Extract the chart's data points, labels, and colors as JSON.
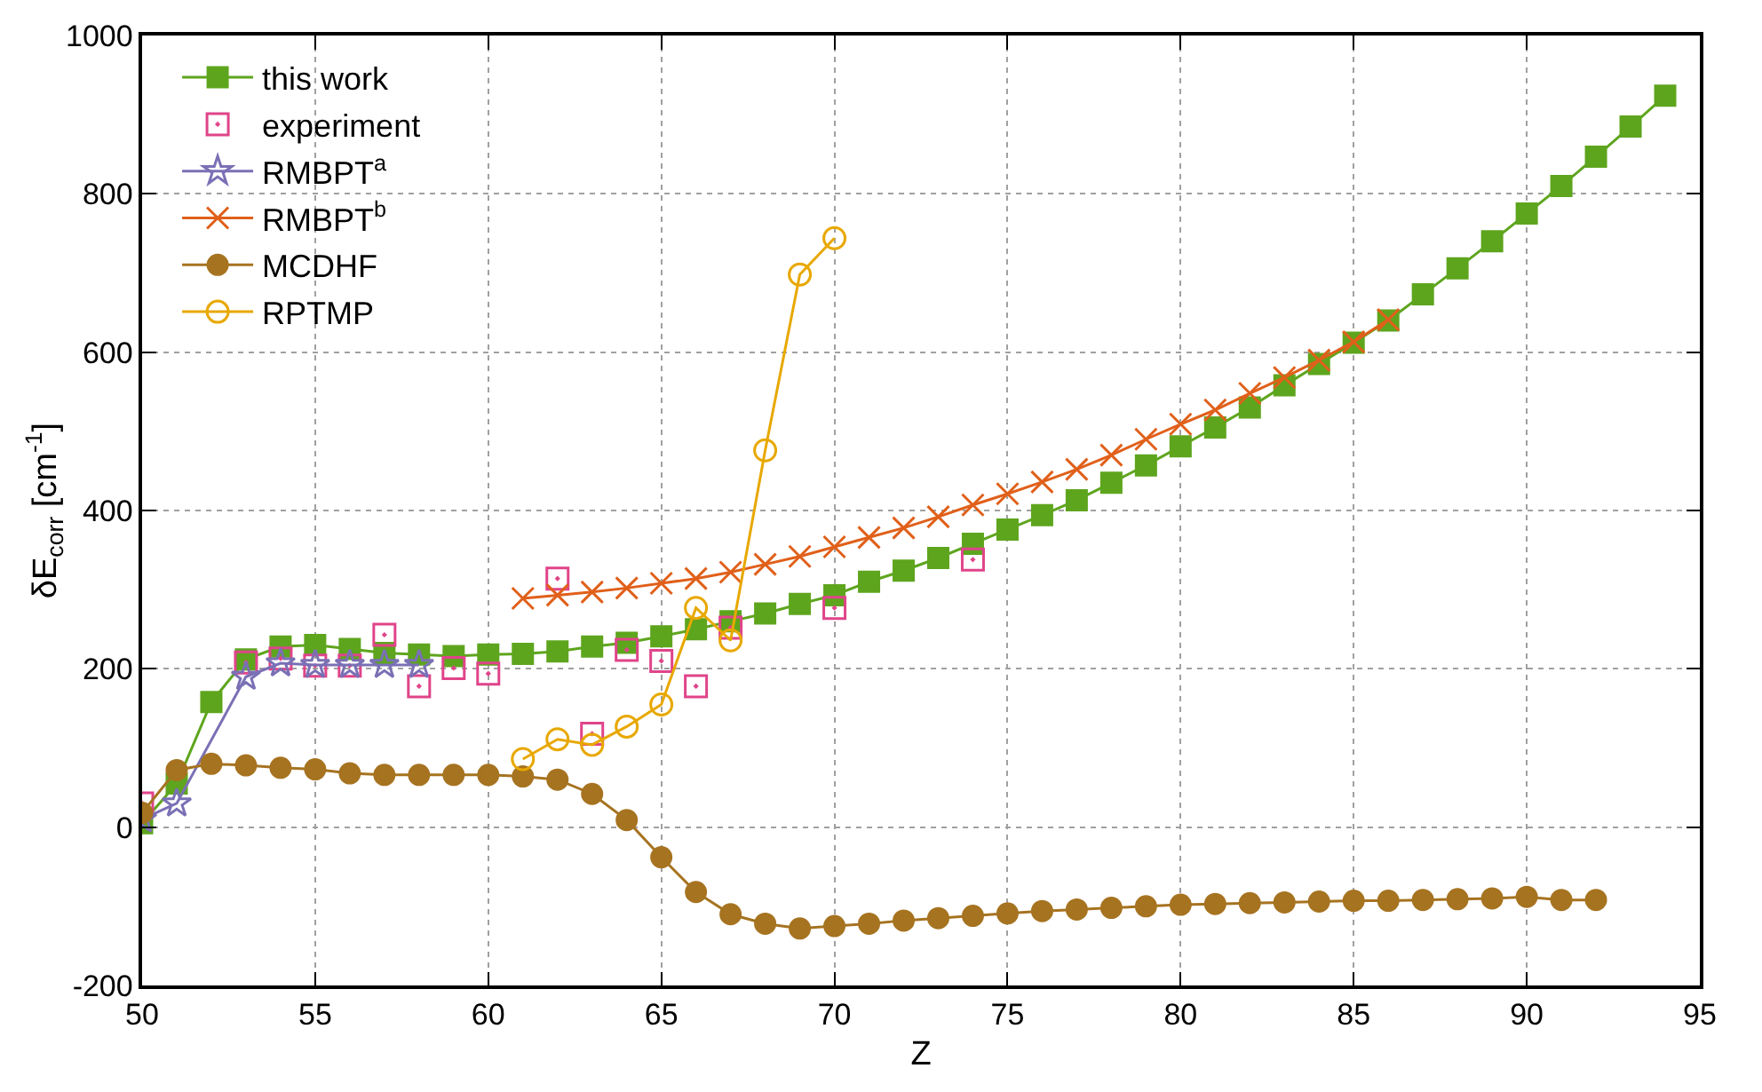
{
  "chart_data": {
    "type": "line",
    "xlabel": "Z",
    "ylabel": "δE$_{corr}$ [cm$^{-1}$]",
    "xlim": [
      50,
      95
    ],
    "xticks": [
      50,
      55,
      60,
      65,
      70,
      75,
      80,
      85,
      90,
      95
    ],
    "ylim": [
      -200,
      1000
    ],
    "yticks": [
      -200,
      0,
      200,
      400,
      600,
      800,
      1000
    ],
    "grid": true,
    "legend": "top left",
    "line_style": "solid",
    "series": [
      {
        "name": "this work",
        "color": "#5ea51e",
        "marker": "square",
        "x": [
          50,
          51,
          52,
          53,
          54,
          55,
          56,
          57,
          58,
          59,
          60,
          61,
          62,
          63,
          64,
          65,
          66,
          67,
          68,
          69,
          70,
          71,
          72,
          73,
          74,
          75,
          76,
          77,
          78,
          79,
          80,
          81,
          82,
          83,
          84,
          85,
          86,
          87,
          88,
          89,
          90,
          91,
          92,
          93,
          94
        ],
        "values": [
          5,
          55,
          158,
          212,
          228,
          230,
          225,
          220,
          218,
          216,
          218,
          219,
          222,
          228,
          233,
          241,
          250,
          260,
          270,
          282,
          293,
          310,
          324,
          340,
          358,
          376,
          394,
          413,
          435,
          457,
          481,
          505,
          530,
          558,
          585,
          612,
          640,
          673,
          706,
          740,
          775,
          810,
          847,
          885,
          924
        ]
      },
      {
        "name": "experiment",
        "type": "scatter",
        "color": "#e0448a",
        "marker": "square-open",
        "x": [
          50,
          53,
          54,
          55,
          56,
          57,
          58,
          59,
          60,
          62,
          63,
          64,
          65,
          66,
          67,
          70,
          74
        ],
        "values": [
          30,
          208,
          213,
          204,
          204,
          243,
          178,
          201,
          194,
          314,
          118,
          224,
          210,
          178,
          252,
          277,
          338
        ]
      },
      {
        "name": "RMBPT$^{a}$",
        "color": "#7a70b5",
        "marker": "star",
        "x": [
          50,
          51,
          53,
          54,
          55,
          56,
          57,
          58
        ],
        "values": [
          10,
          30,
          190,
          207,
          205,
          205,
          205,
          205
        ]
      },
      {
        "name": "RMBPT$^{b}$",
        "color": "#e0601a",
        "marker": "cross",
        "x": [
          61,
          62,
          63,
          64,
          65,
          66,
          67,
          68,
          69,
          70,
          71,
          72,
          73,
          74,
          75,
          76,
          77,
          78,
          79,
          80,
          81,
          82,
          83,
          84,
          85,
          86
        ],
        "values": [
          289,
          293,
          297,
          302,
          308,
          314,
          322,
          332,
          342,
          354,
          366,
          378,
          392,
          407,
          421,
          436,
          452,
          470,
          490,
          509,
          527,
          548,
          568,
          590,
          613,
          641
        ]
      },
      {
        "name": "MCDHF",
        "color": "#a67320",
        "marker": "circle",
        "x": [
          50,
          51,
          52,
          53,
          54,
          55,
          56,
          57,
          58,
          59,
          60,
          61,
          62,
          63,
          64,
          65,
          66,
          67,
          68,
          69,
          70,
          71,
          72,
          73,
          74,
          75,
          76,
          77,
          78,
          79,
          80,
          81,
          82,
          83,
          84,
          85,
          86,
          87,
          88,
          89,
          90,
          91,
          92
        ],
        "values": [
          18,
          72,
          80,
          78,
          75,
          73,
          68,
          66,
          66,
          66,
          66,
          64,
          60,
          42,
          9,
          -38,
          -82,
          -110,
          -122,
          -128,
          -125,
          -122,
          -118,
          -115,
          -112,
          -109,
          -106,
          -104,
          -102,
          -100,
          -98,
          -97,
          -96,
          -95,
          -94,
          -93,
          -93,
          -92,
          -91,
          -90,
          -88,
          -92,
          -92
        ]
      },
      {
        "name": "RPTMP",
        "color": "#e8a800",
        "marker": "circle-open",
        "x": [
          61,
          62,
          63,
          64,
          65,
          66,
          67,
          68,
          69,
          70
        ],
        "values": [
          86,
          111,
          104,
          127,
          155,
          277,
          236,
          476,
          698,
          744
        ]
      }
    ]
  }
}
